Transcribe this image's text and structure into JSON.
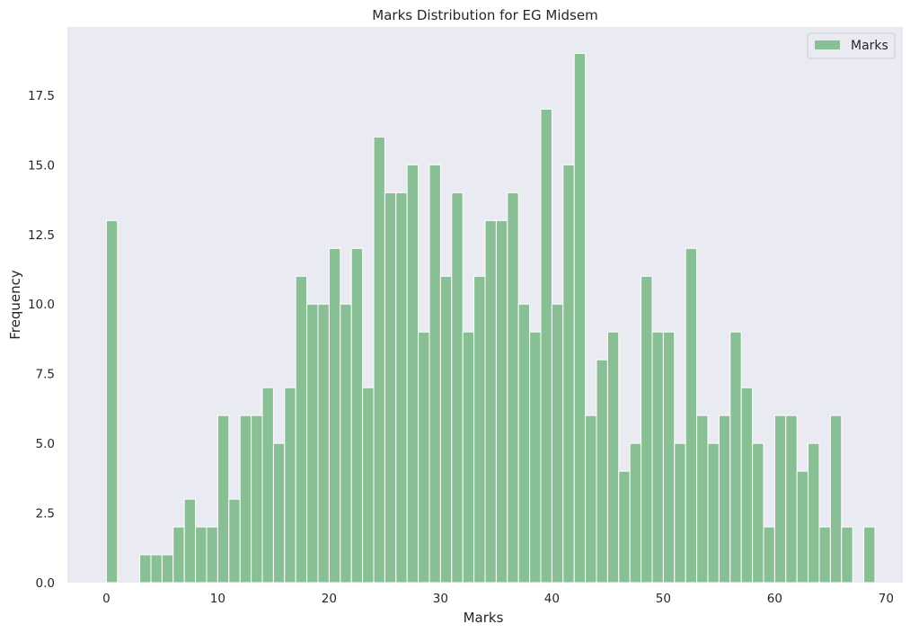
{
  "chart_data": {
    "type": "bar",
    "title": "Marks Distribution for EG Midsem",
    "xlabel": "Marks",
    "ylabel": "Frequency",
    "xlim": [
      -3.5,
      71.5
    ],
    "ylim": [
      0,
      19.95
    ],
    "xticks": [
      0,
      10,
      20,
      30,
      40,
      50,
      60,
      70
    ],
    "yticks": [
      0.0,
      2.5,
      5.0,
      7.5,
      10.0,
      12.5,
      15.0,
      17.5
    ],
    "ytick_labels": [
      "0.0",
      "2.5",
      "5.0",
      "7.5",
      "10.0",
      "12.5",
      "15.0",
      "17.5"
    ],
    "grid": false,
    "legend_position": "top-right",
    "bar_color": "#88bf94",
    "background_color": "#eaeaf2",
    "series": [
      {
        "name": "Marks",
        "x": [
          0,
          3,
          4,
          5,
          6,
          7,
          8,
          9,
          10,
          11,
          12,
          13,
          14,
          15,
          16,
          17,
          18,
          19,
          20,
          21,
          22,
          23,
          24,
          25,
          26,
          27,
          28,
          29,
          30,
          31,
          32,
          33,
          34,
          35,
          36,
          37,
          38,
          39,
          40,
          41,
          42,
          43,
          44,
          45,
          46,
          47,
          48,
          49,
          50,
          51,
          52,
          53,
          54,
          55,
          56,
          57,
          58,
          59,
          60,
          61,
          62,
          63,
          64,
          65,
          66,
          68
        ],
        "values": [
          13,
          1,
          1,
          1,
          2,
          3,
          2,
          2,
          6,
          3,
          6,
          6,
          7,
          5,
          7,
          11,
          10,
          10,
          12,
          10,
          12,
          7,
          16,
          14,
          14,
          15,
          9,
          15,
          11,
          14,
          9,
          11,
          13,
          13,
          14,
          10,
          9,
          17,
          10,
          15,
          19,
          6,
          8,
          9,
          4,
          5,
          11,
          9,
          9,
          5,
          12,
          6,
          5,
          6,
          9,
          7,
          5,
          2,
          6,
          6,
          4,
          5,
          2,
          6,
          2,
          2
        ]
      }
    ]
  }
}
